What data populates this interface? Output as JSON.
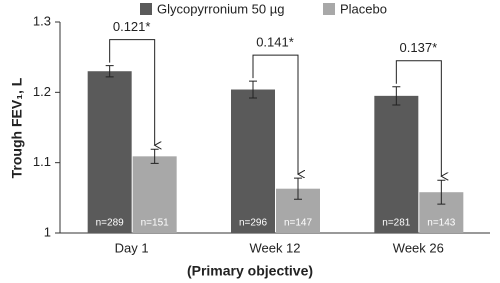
{
  "chart_data": {
    "type": "bar",
    "ylabel": "Trough FEV₁, L",
    "xlabel": "(Primary objective)",
    "categories": [
      "Day 1",
      "Week 12",
      "Week 26"
    ],
    "series": [
      {
        "name": "Glycopyrronium 50 µg",
        "color": "#5a5a5a",
        "values": [
          1.23,
          1.204,
          1.195
        ],
        "errors": [
          0.008,
          0.012,
          0.013
        ],
        "n_labels": [
          "n=289",
          "n=296",
          "n=281"
        ]
      },
      {
        "name": "Placebo",
        "color": "#a8a8a8",
        "values": [
          1.109,
          1.063,
          1.058
        ],
        "errors": [
          0.01,
          0.015,
          0.017
        ],
        "n_labels": [
          "n=151",
          "n=147",
          "n=143"
        ]
      }
    ],
    "difference_labels": [
      "0.121*",
      "0.141*",
      "0.137*"
    ],
    "ylim": [
      1,
      1.3
    ],
    "yticks": [
      1,
      1.1,
      1.2,
      1.3
    ],
    "grid": false
  }
}
